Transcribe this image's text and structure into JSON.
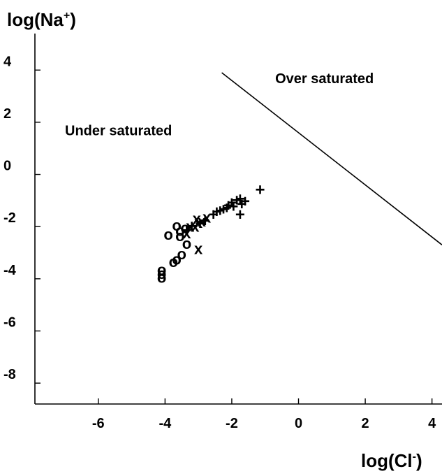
{
  "chart_data": {
    "type": "scatter",
    "xlabel": "log(Cl",
    "xlabel_sup": "-",
    "xlabel_close": ")",
    "ylabel": "log(Na",
    "ylabel_sup": "+",
    "ylabel_close": ")",
    "xlim": [
      -7.9,
      4.3
    ],
    "ylim": [
      -8.8,
      5.4
    ],
    "xticks": [
      -6,
      -4,
      -2,
      0,
      2,
      4
    ],
    "yticks": [
      4,
      2,
      0,
      -2,
      -4,
      -6,
      -8
    ],
    "grid": false,
    "legend": "none",
    "saturation_line": {
      "x": [
        -2.3,
        4.3
      ],
      "y": [
        3.9,
        -2.7
      ]
    },
    "annotations": [
      {
        "text": "Under saturated",
        "x": -7.0,
        "y": 1.5
      },
      {
        "text": "Over saturated",
        "x": -0.7,
        "y": 3.5
      }
    ],
    "series": [
      {
        "marker": "o",
        "points": [
          [
            -4.1,
            -3.65
          ],
          [
            -4.1,
            -3.8
          ],
          [
            -4.1,
            -3.95
          ],
          [
            -3.75,
            -3.35
          ],
          [
            -3.65,
            -3.25
          ],
          [
            -3.5,
            -3.05
          ],
          [
            -3.35,
            -2.65
          ],
          [
            -3.55,
            -2.35
          ],
          [
            -3.9,
            -2.3
          ],
          [
            -3.55,
            -2.15
          ],
          [
            -3.4,
            -2.05
          ],
          [
            -3.65,
            -1.95
          ]
        ]
      },
      {
        "marker": "x",
        "points": [
          [
            -3.35,
            -2.25
          ],
          [
            -3.25,
            -2.0
          ],
          [
            -3.1,
            -2.0
          ],
          [
            -3.0,
            -1.85
          ],
          [
            -2.9,
            -1.8
          ],
          [
            -3.05,
            -1.7
          ],
          [
            -2.75,
            -1.65
          ],
          [
            -3.0,
            -2.85
          ]
        ]
      },
      {
        "marker": "+",
        "points": [
          [
            -3.35,
            -2.15
          ],
          [
            -3.2,
            -2.0
          ],
          [
            -2.95,
            -1.9
          ],
          [
            -2.8,
            -1.8
          ],
          [
            -2.55,
            -1.55
          ],
          [
            -2.35,
            -1.4
          ],
          [
            -2.25,
            -1.35
          ],
          [
            -2.1,
            -1.2
          ],
          [
            -2.0,
            -1.1
          ],
          [
            -1.95,
            -1.25
          ],
          [
            -1.85,
            -1.0
          ],
          [
            -1.75,
            -0.95
          ],
          [
            -1.7,
            -1.15
          ],
          [
            -1.6,
            -1.05
          ],
          [
            -1.75,
            -1.55
          ],
          [
            -1.15,
            -0.6
          ],
          [
            -2.45,
            -1.45
          ],
          [
            -2.15,
            -1.3
          ]
        ]
      }
    ]
  }
}
